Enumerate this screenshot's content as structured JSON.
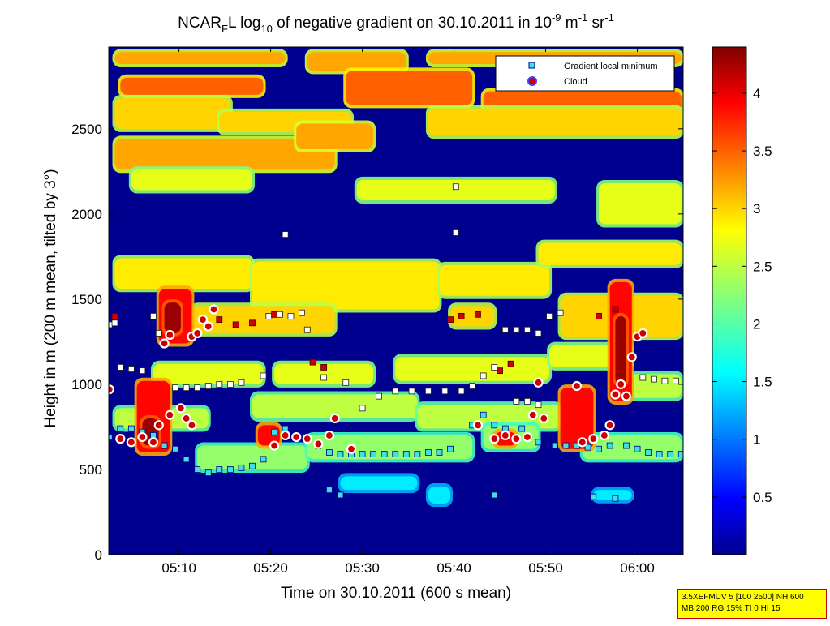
{
  "chart_data": {
    "type": "heatmap",
    "title": {
      "prefix": "NCAR",
      "prefix_sub": "F",
      "mid": "L log",
      "mid_sub": "10",
      "main": " of negative gradient on 30.10.2011 in 10",
      "exp1": "-9",
      "unit1": " m",
      "exp2": "-1",
      "unit2": " sr",
      "exp3": "-1"
    },
    "xlabel": "Time on 30.10.2011 (600 s mean)",
    "ylabel": "Height in m (200 m mean, tilted by 3°)",
    "x_ticks": [
      {
        "v": 5.1667,
        "label": "05:10"
      },
      {
        "v": 5.3333,
        "label": "05:20"
      },
      {
        "v": 5.5,
        "label": "05:30"
      },
      {
        "v": 5.6667,
        "label": "05:40"
      },
      {
        "v": 5.8333,
        "label": "05:50"
      },
      {
        "v": 6.0,
        "label": "06:00"
      }
    ],
    "y_ticks": [
      {
        "v": 0,
        "label": "0"
      },
      {
        "v": 500,
        "label": "500"
      },
      {
        "v": 1000,
        "label": "1000"
      },
      {
        "v": 1500,
        "label": "1500"
      },
      {
        "v": 2000,
        "label": "2000"
      },
      {
        "v": 2500,
        "label": "2500"
      }
    ],
    "xlim": [
      5.0389,
      6.0833
    ],
    "ylim": [
      0,
      2980
    ],
    "colorbar": {
      "range": [
        0,
        4.4
      ],
      "ticks": [
        "0.5",
        "1",
        "1.5",
        "2",
        "2.5",
        "3",
        "3.5",
        "4"
      ],
      "colormap": "jet"
    },
    "legend": {
      "position": "top-right",
      "entries": [
        "Gradient local minimum",
        "Cloud"
      ]
    },
    "bands": [
      {
        "v": 3.2,
        "segs": [
          [
            5.05,
            5.36,
            2880,
            2950
          ],
          [
            5.4,
            5.58,
            2840,
            2950
          ],
          [
            5.62,
            6.08,
            2880,
            2950
          ]
        ]
      },
      {
        "v": 3.5,
        "segs": [
          [
            5.06,
            5.32,
            2700,
            2800
          ],
          [
            5.47,
            5.7,
            2640,
            2840
          ],
          [
            5.72,
            6.08,
            2560,
            2720
          ]
        ]
      },
      {
        "v": 3.0,
        "segs": [
          [
            5.05,
            5.26,
            2500,
            2680
          ],
          [
            5.24,
            5.48,
            2480,
            2600
          ],
          [
            5.62,
            6.08,
            2460,
            2620
          ]
        ]
      },
      {
        "v": 3.2,
        "segs": [
          [
            5.05,
            5.45,
            2260,
            2440
          ],
          [
            5.38,
            5.52,
            2380,
            2530
          ]
        ]
      },
      {
        "v": 2.7,
        "segs": [
          [
            5.08,
            5.3,
            2140,
            2260
          ],
          [
            5.49,
            5.85,
            2080,
            2200
          ],
          [
            5.93,
            6.08,
            1940,
            2180
          ]
        ]
      },
      {
        "v": 2.9,
        "segs": [
          [
            5.05,
            5.3,
            1560,
            1740
          ],
          [
            5.3,
            5.64,
            1440,
            1720
          ],
          [
            5.64,
            5.84,
            1520,
            1700
          ],
          [
            5.82,
            6.08,
            1700,
            1830
          ]
        ]
      },
      {
        "v": 3.0,
        "segs": [
          [
            5.19,
            5.45,
            1300,
            1460
          ],
          [
            5.66,
            5.74,
            1340,
            1460
          ],
          [
            5.86,
            6.08,
            1280,
            1520
          ]
        ]
      },
      {
        "v": 2.7,
        "segs": [
          [
            5.12,
            5.32,
            1000,
            1120
          ],
          [
            5.34,
            5.52,
            1000,
            1120
          ],
          [
            5.56,
            5.84,
            1020,
            1160
          ],
          [
            5.84,
            5.99,
            1100,
            1230
          ]
        ]
      },
      {
        "v": 2.5,
        "segs": [
          [
            5.05,
            5.22,
            740,
            860
          ],
          [
            5.3,
            5.6,
            800,
            940
          ],
          [
            5.6,
            5.86,
            740,
            880
          ],
          [
            5.96,
            6.08,
            920,
            1060
          ]
        ]
      },
      {
        "v": 2.3,
        "segs": [
          [
            5.2,
            5.4,
            500,
            640
          ],
          [
            5.4,
            5.7,
            560,
            700
          ],
          [
            5.72,
            5.82,
            620,
            760
          ],
          [
            5.9,
            6.08,
            560,
            700
          ]
        ]
      },
      {
        "v": 1.5,
        "segs": [
          [
            5.46,
            5.6,
            380,
            460
          ],
          [
            5.62,
            5.66,
            300,
            400
          ],
          [
            5.92,
            5.99,
            320,
            380
          ]
        ]
      },
      {
        "v": 3.9,
        "segs": [
          [
            5.09,
            5.15,
            600,
            1020
          ],
          [
            5.13,
            5.19,
            1240,
            1560
          ],
          [
            5.31,
            5.35,
            640,
            760
          ],
          [
            5.74,
            5.78,
            640,
            720
          ],
          [
            5.86,
            5.92,
            620,
            980
          ],
          [
            5.95,
            5.99,
            900,
            1600
          ]
        ]
      },
      {
        "v": 4.3,
        "segs": [
          [
            5.1,
            5.13,
            640,
            800
          ],
          [
            5.14,
            5.17,
            1300,
            1480
          ],
          [
            5.96,
            5.98,
            1000,
            1400
          ]
        ]
      }
    ],
    "gradient_minima": [
      {
        "x": 5.04,
        "y": 1350
      },
      {
        "x": 5.05,
        "y": 1360
      },
      {
        "x": 5.06,
        "y": 1100
      },
      {
        "x": 5.08,
        "y": 1090
      },
      {
        "x": 5.1,
        "y": 1080
      },
      {
        "x": 5.12,
        "y": 1400
      },
      {
        "x": 5.13,
        "y": 1300
      },
      {
        "x": 5.16,
        "y": 980
      },
      {
        "x": 5.18,
        "y": 980
      },
      {
        "x": 5.2,
        "y": 980
      },
      {
        "x": 5.22,
        "y": 990
      },
      {
        "x": 5.24,
        "y": 1000
      },
      {
        "x": 5.26,
        "y": 1000
      },
      {
        "x": 5.28,
        "y": 1010
      },
      {
        "x": 5.32,
        "y": 1050
      },
      {
        "x": 5.33,
        "y": 1400
      },
      {
        "x": 5.35,
        "y": 1410
      },
      {
        "x": 5.37,
        "y": 1400
      },
      {
        "x": 5.39,
        "y": 1420
      },
      {
        "x": 5.4,
        "y": 1320
      },
      {
        "x": 5.36,
        "y": 1880
      },
      {
        "x": 5.43,
        "y": 1040
      },
      {
        "x": 5.47,
        "y": 1010
      },
      {
        "x": 5.5,
        "y": 860
      },
      {
        "x": 5.53,
        "y": 930
      },
      {
        "x": 5.56,
        "y": 960
      },
      {
        "x": 5.59,
        "y": 960
      },
      {
        "x": 5.62,
        "y": 960
      },
      {
        "x": 5.65,
        "y": 960
      },
      {
        "x": 5.68,
        "y": 960
      },
      {
        "x": 5.7,
        "y": 990
      },
      {
        "x": 5.67,
        "y": 2160
      },
      {
        "x": 5.67,
        "y": 1890
      },
      {
        "x": 5.72,
        "y": 1050
      },
      {
        "x": 5.74,
        "y": 1100
      },
      {
        "x": 5.76,
        "y": 1320
      },
      {
        "x": 5.78,
        "y": 1320
      },
      {
        "x": 5.8,
        "y": 1320
      },
      {
        "x": 5.82,
        "y": 1300
      },
      {
        "x": 5.84,
        "y": 1400
      },
      {
        "x": 5.86,
        "y": 1420
      },
      {
        "x": 5.78,
        "y": 900
      },
      {
        "x": 5.8,
        "y": 900
      },
      {
        "x": 5.82,
        "y": 880
      },
      {
        "x": 6.01,
        "y": 1040
      },
      {
        "x": 6.03,
        "y": 1030
      },
      {
        "x": 6.05,
        "y": 1020
      },
      {
        "x": 6.07,
        "y": 1020
      }
    ],
    "cloud_like_minima": [
      {
        "x": 5.04,
        "y": 690
      },
      {
        "x": 5.06,
        "y": 740
      },
      {
        "x": 5.08,
        "y": 740
      },
      {
        "x": 5.1,
        "y": 720
      },
      {
        "x": 5.12,
        "y": 700
      },
      {
        "x": 5.14,
        "y": 640
      },
      {
        "x": 5.16,
        "y": 620
      },
      {
        "x": 5.18,
        "y": 560
      },
      {
        "x": 5.2,
        "y": 500
      },
      {
        "x": 5.22,
        "y": 480
      },
      {
        "x": 5.24,
        "y": 500
      },
      {
        "x": 5.26,
        "y": 500
      },
      {
        "x": 5.28,
        "y": 510
      },
      {
        "x": 5.3,
        "y": 520
      },
      {
        "x": 5.32,
        "y": 560
      },
      {
        "x": 5.34,
        "y": 720
      },
      {
        "x": 5.36,
        "y": 740
      },
      {
        "x": 5.38,
        "y": 700
      },
      {
        "x": 5.4,
        "y": 680
      },
      {
        "x": 5.42,
        "y": 640
      },
      {
        "x": 5.44,
        "y": 600
      },
      {
        "x": 5.46,
        "y": 590
      },
      {
        "x": 5.48,
        "y": 590
      },
      {
        "x": 5.5,
        "y": 590
      },
      {
        "x": 5.52,
        "y": 590
      },
      {
        "x": 5.54,
        "y": 590
      },
      {
        "x": 5.56,
        "y": 590
      },
      {
        "x": 5.58,
        "y": 590
      },
      {
        "x": 5.6,
        "y": 590
      },
      {
        "x": 5.62,
        "y": 600
      },
      {
        "x": 5.64,
        "y": 600
      },
      {
        "x": 5.66,
        "y": 620
      },
      {
        "x": 5.7,
        "y": 760
      },
      {
        "x": 5.72,
        "y": 820
      },
      {
        "x": 5.74,
        "y": 760
      },
      {
        "x": 5.76,
        "y": 740
      },
      {
        "x": 5.79,
        "y": 740
      },
      {
        "x": 5.82,
        "y": 660
      },
      {
        "x": 5.85,
        "y": 640
      },
      {
        "x": 5.87,
        "y": 640
      },
      {
        "x": 5.89,
        "y": 640
      },
      {
        "x": 5.91,
        "y": 630
      },
      {
        "x": 5.93,
        "y": 620
      },
      {
        "x": 5.95,
        "y": 640
      },
      {
        "x": 5.98,
        "y": 640
      },
      {
        "x": 6.0,
        "y": 620
      },
      {
        "x": 6.02,
        "y": 600
      },
      {
        "x": 6.04,
        "y": 590
      },
      {
        "x": 6.06,
        "y": 590
      },
      {
        "x": 6.08,
        "y": 590
      },
      {
        "x": 5.44,
        "y": 380
      },
      {
        "x": 5.46,
        "y": 350
      },
      {
        "x": 5.74,
        "y": 350
      },
      {
        "x": 5.92,
        "y": 340
      },
      {
        "x": 5.96,
        "y": 330
      }
    ],
    "clouds": [
      {
        "x": 5.04,
        "y": 970
      },
      {
        "x": 5.06,
        "y": 680
      },
      {
        "x": 5.08,
        "y": 660
      },
      {
        "x": 5.1,
        "y": 690
      },
      {
        "x": 5.12,
        "y": 660
      },
      {
        "x": 5.13,
        "y": 760
      },
      {
        "x": 5.14,
        "y": 1240
      },
      {
        "x": 5.15,
        "y": 1290
      },
      {
        "x": 5.15,
        "y": 820
      },
      {
        "x": 5.17,
        "y": 860
      },
      {
        "x": 5.18,
        "y": 800
      },
      {
        "x": 5.19,
        "y": 760
      },
      {
        "x": 5.19,
        "y": 1280
      },
      {
        "x": 5.2,
        "y": 1300
      },
      {
        "x": 5.21,
        "y": 1380
      },
      {
        "x": 5.22,
        "y": 1340
      },
      {
        "x": 5.23,
        "y": 1440
      },
      {
        "x": 5.34,
        "y": 640
      },
      {
        "x": 5.36,
        "y": 700
      },
      {
        "x": 5.38,
        "y": 690
      },
      {
        "x": 5.4,
        "y": 680
      },
      {
        "x": 5.42,
        "y": 650
      },
      {
        "x": 5.44,
        "y": 700
      },
      {
        "x": 5.45,
        "y": 800
      },
      {
        "x": 5.48,
        "y": 620
      },
      {
        "x": 5.71,
        "y": 760
      },
      {
        "x": 5.74,
        "y": 680
      },
      {
        "x": 5.76,
        "y": 700
      },
      {
        "x": 5.78,
        "y": 680
      },
      {
        "x": 5.8,
        "y": 690
      },
      {
        "x": 5.81,
        "y": 820
      },
      {
        "x": 5.82,
        "y": 1010
      },
      {
        "x": 5.83,
        "y": 800
      },
      {
        "x": 5.89,
        "y": 990
      },
      {
        "x": 5.9,
        "y": 660
      },
      {
        "x": 5.92,
        "y": 680
      },
      {
        "x": 5.94,
        "y": 700
      },
      {
        "x": 5.95,
        "y": 760
      },
      {
        "x": 5.96,
        "y": 940
      },
      {
        "x": 5.97,
        "y": 1000
      },
      {
        "x": 5.98,
        "y": 930
      },
      {
        "x": 5.99,
        "y": 1160
      },
      {
        "x": 6.0,
        "y": 1280
      },
      {
        "x": 6.01,
        "y": 1300
      }
    ],
    "red_minima": [
      {
        "x": 5.05,
        "y": 1400
      },
      {
        "x": 5.24,
        "y": 1380
      },
      {
        "x": 5.27,
        "y": 1350
      },
      {
        "x": 5.3,
        "y": 1360
      },
      {
        "x": 5.34,
        "y": 1410
      },
      {
        "x": 5.41,
        "y": 1130
      },
      {
        "x": 5.43,
        "y": 1100
      },
      {
        "x": 5.66,
        "y": 1380
      },
      {
        "x": 5.68,
        "y": 1400
      },
      {
        "x": 5.71,
        "y": 1410
      },
      {
        "x": 5.75,
        "y": 1080
      },
      {
        "x": 5.77,
        "y": 1120
      },
      {
        "x": 5.93,
        "y": 1400
      },
      {
        "x": 5.96,
        "y": 1440
      }
    ]
  },
  "stamp": {
    "line1": "3.5XEFMUV 5 [100 2500] NH 600",
    "line2": "MB 200 RG 15% TI 0 HI 15"
  },
  "colors": {
    "background": "#00008f",
    "gradient_marker": "#40e0e0",
    "cloud_fill": "#cc0000",
    "cloud_edge": "#4040ff",
    "stamp_fill": "#ffff00",
    "stamp_border": "#cc0000"
  }
}
